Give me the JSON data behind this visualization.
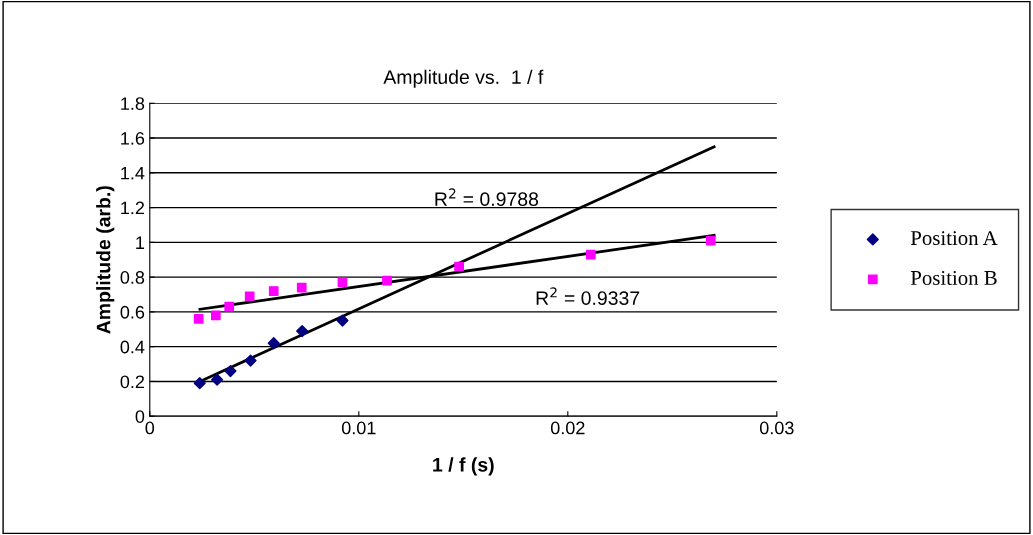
{
  "chart_data": {
    "type": "scatter",
    "title": "Amplitude vs.  1 / f",
    "xlabel": "1 / f (s)",
    "ylabel": "Amplitude (arb.)",
    "series": [
      {
        "name": "Position A",
        "color": "#000080",
        "marker": "diamond",
        "x": [
          0.00239,
          0.00322,
          0.00386,
          0.00482,
          0.00593,
          0.00729,
          0.00922
        ],
        "values": [
          0.19,
          0.21,
          0.26,
          0.32,
          0.42,
          0.49,
          0.55
        ]
      },
      {
        "name": "Position B",
        "color": "#ff00ff",
        "marker": "square",
        "x": [
          0.00234,
          0.00316,
          0.0038,
          0.00478,
          0.00593,
          0.00727,
          0.00922,
          0.01135,
          0.0148,
          0.0211,
          0.02684
        ],
        "values": [
          0.56,
          0.58,
          0.63,
          0.69,
          0.72,
          0.74,
          0.77,
          0.78,
          0.86,
          0.93,
          1.01
        ]
      },
      {
        "type": "line",
        "color": "#000000",
        "marker": "none",
        "x": [
          0.0024,
          0.027
        ],
        "values": [
          0.2,
          1.55
        ]
      },
      {
        "type": "line",
        "color": "#000000",
        "marker": "none",
        "x": [
          0.0024,
          0.027
        ],
        "values": [
          0.615,
          1.04
        ]
      }
    ],
    "xlim": [
      0,
      0.03
    ],
    "xticks": [
      0,
      0.01,
      0.02,
      0.03
    ],
    "ylim": [
      0,
      1.8
    ],
    "yticks": [
      0,
      0.2,
      0.4,
      0.6,
      0.8,
      1,
      1.2,
      1.4,
      1.6,
      1.8
    ],
    "grid": "y",
    "legend": "right",
    "annotations": [
      "R$^{2}$ = 0.9788",
      "R$^{2}$ = 0.9337"
    ]
  }
}
